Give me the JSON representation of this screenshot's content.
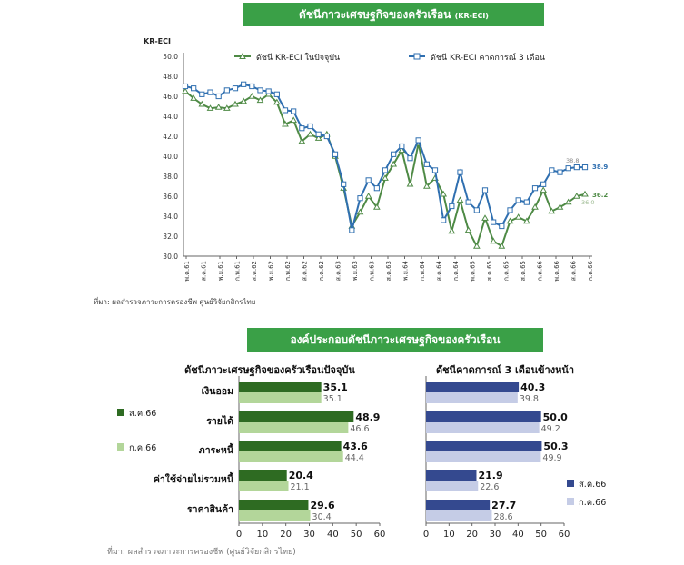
{
  "chart_data": [
    {
      "type": "line",
      "title": "ดัชนีภาวะเศรษฐกิจของครัวเรือน",
      "title_suffix": "(KR-ECI)",
      "ylabel": "KR-ECI",
      "ylim": [
        30.0,
        50.0
      ],
      "yticks": [
        "30.0",
        "32.0",
        "34.0",
        "36.0",
        "38.0",
        "40.0",
        "42.0",
        "44.0",
        "46.0",
        "48.0",
        "50.0"
      ],
      "xticks": [
        "พ.ค.61",
        "ส.ค.61",
        "พ.ย.61",
        "ก.พ.61",
        "ส.ค.62",
        "พ.ย.62",
        "ก.พ.62",
        "ส.ค.62",
        "ก.ค.62",
        "ส.ค.63",
        "พ.ย.63",
        "ก.พ.63",
        "ส.ค.63",
        "พ.ย.64",
        "ก.พ.64",
        "ส.ค.64",
        "ก.ค.64",
        "พ.ค.65",
        "ส.ค.65",
        "ก.ค.65",
        "ส.ค.65",
        "ก.ค.66",
        "พ.ค.66",
        "ส.ค.66",
        "ก.ค.66"
      ],
      "legend_position": "top",
      "grid": false,
      "series": [
        {
          "name": "ดัชนี KR-ECI ในปัจจุบัน",
          "color": "#4e8a45",
          "marker": "triangle",
          "values": [
            46.5,
            45.8,
            45.2,
            44.8,
            44.9,
            44.8,
            45.2,
            45.5,
            46.0,
            45.6,
            46.2,
            45.4,
            43.2,
            43.6,
            41.5,
            42.2,
            41.8,
            42.2,
            40.0,
            36.8,
            33.0,
            34.4,
            36.0,
            34.9,
            37.8,
            39.2,
            40.6,
            37.2,
            41.3,
            37.0,
            37.8,
            36.2,
            32.5,
            35.6,
            32.6,
            31.0,
            33.8,
            31.5,
            31.0,
            33.5,
            33.9,
            33.5,
            34.9,
            36.6,
            34.5,
            34.9,
            35.4,
            36.0,
            36.2
          ]
        },
        {
          "name": "ดัชนี KR-ECI คาดการณ์ 3 เดือน",
          "color": "#2f6fb0",
          "marker": "square",
          "values": [
            47.0,
            46.8,
            46.2,
            46.4,
            46.0,
            46.6,
            46.8,
            47.2,
            47.0,
            46.6,
            46.5,
            46.2,
            44.6,
            44.5,
            42.8,
            43.0,
            42.2,
            42.0,
            40.2,
            37.2,
            32.6,
            35.8,
            37.6,
            36.8,
            38.6,
            40.2,
            41.0,
            39.8,
            41.6,
            39.2,
            38.6,
            33.6,
            35.0,
            38.4,
            35.4,
            34.6,
            36.6,
            33.4,
            33.0,
            34.6,
            35.6,
            35.4,
            36.8,
            37.2,
            38.6,
            38.4,
            38.8,
            38.9,
            38.9
          ]
        }
      ],
      "annotations": {
        "cur_last": "36.2",
        "cur_prev": "36.0",
        "exp_prev": "38.8",
        "exp_last": "38.9"
      },
      "source": "ที่มา: ผลสำรวจภาวะการครองชีพ ศูนย์วิจัยกสิกรไทย"
    },
    {
      "type": "bar",
      "orientation": "horizontal",
      "title": "ดัชนีภาวะเศรษฐกิจของครัวเรือนปัจจุบัน",
      "categories": [
        "เงินออม",
        "รายได้",
        "ภาระหนี้",
        "ค่าใช้จ่ายไม่รวมหนี้",
        "ราคาสินค้า"
      ],
      "xlim": [
        0,
        60
      ],
      "xticks": [
        "0",
        "10",
        "20",
        "30",
        "40",
        "50",
        "60"
      ],
      "legend_position": "left",
      "series": [
        {
          "name": "ส.ค.66",
          "color": "#2e6b22",
          "values": [
            35.1,
            48.9,
            43.6,
            20.4,
            29.6
          ],
          "labels": [
            "35.1",
            "48.9",
            "43.6",
            "20.4",
            "29.6"
          ]
        },
        {
          "name": "ก.ค.66",
          "color": "#b3d69a",
          "values": [
            35.1,
            46.6,
            44.4,
            21.1,
            30.4
          ],
          "labels": [
            "35.1",
            "46.6",
            "44.4",
            "21.1",
            "30.4"
          ]
        }
      ]
    },
    {
      "type": "bar",
      "orientation": "horizontal",
      "title": "ดัชนีคาดการณ์ 3 เดือนข้างหน้า",
      "categories": [
        "เงินออม",
        "รายได้",
        "ภาระหนี้",
        "ค่าใช้จ่ายไม่รวมหนี้",
        "ราคาสินค้า"
      ],
      "xlim": [
        0,
        60
      ],
      "xticks": [
        "0",
        "10",
        "20",
        "30",
        "40",
        "50",
        "60"
      ],
      "legend_position": "right",
      "series": [
        {
          "name": "ส.ค.66",
          "color": "#34498f",
          "values": [
            40.3,
            50.0,
            50.3,
            21.9,
            27.7
          ],
          "labels": [
            "40.3",
            "50.0",
            "50.3",
            "21.9",
            "27.7"
          ]
        },
        {
          "name": "ก.ค.66",
          "color": "#c5cce6",
          "values": [
            39.8,
            49.2,
            49.9,
            22.6,
            28.6
          ],
          "labels": [
            "39.8",
            "49.2",
            "49.9",
            "22.6",
            "28.6"
          ]
        }
      ]
    }
  ],
  "section2_title": "องค์ประกอบดัชนีภาวะเศรษฐกิจของครัวเรือน",
  "top_source": "ที่มา: ผลสำรวจภาวะการครองชีพ ศูนย์วิจัยกสิกรไทย",
  "bottom_source": "ที่มา: ผลสำรวจภาวะการครองชีพ (ศูนย์วิจัยกสิกรไทย)"
}
